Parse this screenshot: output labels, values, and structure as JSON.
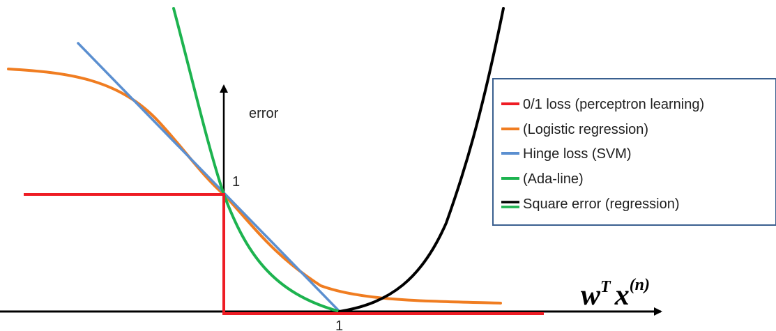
{
  "figure": {
    "y_axis_label": "error",
    "marker_y_one": "1",
    "marker_x_one": "1",
    "x_axis_label": {
      "base_w": "w",
      "sup_t": "T",
      "base_x": "x",
      "sup_n": "(n)"
    }
  },
  "legend": {
    "items": [
      {
        "label": "0/1 loss (perceptron learning)",
        "color": "#ee1c24"
      },
      {
        "label": "(Logistic regression)",
        "color": "#f07d21"
      },
      {
        "label": "Hinge loss (SVM)",
        "color": "#5b8fd0"
      },
      {
        "label": "(Ada-line)",
        "color": "#1db34f"
      },
      {
        "label": "Square error (regression)",
        "color": "#000000",
        "second_color": "#1db34f"
      }
    ],
    "border_color": "#3a5f8f"
  },
  "curves": {
    "zero_one_color": "#ee1c24",
    "logistic_color": "#f07d21",
    "hinge_color": "#5b8fd0",
    "adaline_color": "#1db34f",
    "square_color": "#000000"
  }
}
